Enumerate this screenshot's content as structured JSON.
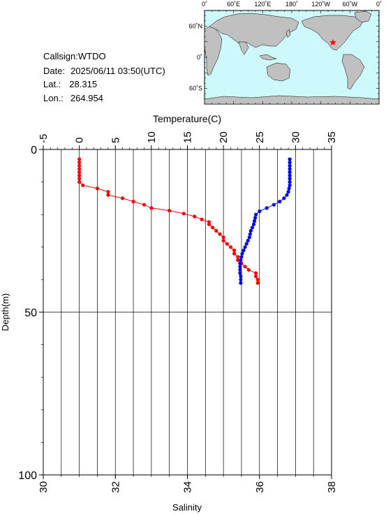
{
  "info": {
    "callsign_label": "Callsign:",
    "callsign": "WTDO",
    "date_label": "Date:",
    "date": "2025/06/11 03:50(UTC)",
    "lat_label": "Lat.:",
    "lat": "28.315",
    "lon_label": "Lon.:",
    "lon": "264.954"
  },
  "map": {
    "top_labels": [
      "0˚",
      "60˚E",
      "120˚E",
      "180˚",
      "120˚W",
      "60˚W",
      "0˚"
    ],
    "left_labels": [
      "60˚N",
      "0˚",
      "60˚S"
    ],
    "ocean_color": "#cdf9fd",
    "land_color": "#c0c0c0",
    "marker_color": "#ff0000",
    "marker": {
      "lat": 28.315,
      "lon": 264.954
    }
  },
  "chart_data": {
    "type": "line",
    "top_axis": {
      "label": "Temperature(C)",
      "range": [
        -5,
        35
      ],
      "ticks": [
        "-5",
        "0",
        "5",
        "10",
        "15",
        "20",
        "25",
        "30",
        "35"
      ]
    },
    "bottom_axis": {
      "label": "Salinity",
      "range": [
        30,
        38
      ],
      "ticks": [
        "30",
        "32",
        "34",
        "36",
        "38"
      ]
    },
    "y_axis": {
      "label": "Depth(m)",
      "range": [
        0,
        100
      ],
      "inverted": true,
      "ticks": [
        "0",
        "50",
        "100"
      ]
    },
    "grid": true,
    "series": [
      {
        "color": "#ff0000",
        "axis": "bottom",
        "points": [
          [
            31.0,
            3
          ],
          [
            31.0,
            4
          ],
          [
            31.0,
            5
          ],
          [
            31.0,
            6
          ],
          [
            31.0,
            7
          ],
          [
            31.0,
            8
          ],
          [
            31.0,
            9
          ],
          [
            31.0,
            10
          ],
          [
            31.1,
            11
          ],
          [
            31.5,
            12
          ],
          [
            31.8,
            13
          ],
          [
            31.8,
            14
          ],
          [
            32.2,
            15
          ],
          [
            32.5,
            16
          ],
          [
            32.8,
            17
          ],
          [
            33.0,
            18
          ],
          [
            33.5,
            18.8
          ],
          [
            33.9,
            19.7
          ],
          [
            34.2,
            20.6
          ],
          [
            34.4,
            21.5
          ],
          [
            34.6,
            22.3
          ],
          [
            34.6,
            23
          ],
          [
            34.7,
            24
          ],
          [
            34.8,
            25
          ],
          [
            34.9,
            26
          ],
          [
            35.0,
            27
          ],
          [
            35.0,
            28
          ],
          [
            35.1,
            29
          ],
          [
            35.2,
            30
          ],
          [
            35.3,
            31
          ],
          [
            35.3,
            32
          ],
          [
            35.4,
            33
          ],
          [
            35.4,
            34
          ],
          [
            35.5,
            35
          ],
          [
            35.6,
            36
          ],
          [
            35.7,
            37
          ],
          [
            35.9,
            38
          ],
          [
            35.9,
            39
          ],
          [
            35.95,
            40
          ],
          [
            35.95,
            41
          ]
        ]
      },
      {
        "color": "#0000ff",
        "axis": "top",
        "points": [
          [
            29.2,
            3
          ],
          [
            29.2,
            4
          ],
          [
            29.2,
            5
          ],
          [
            29.2,
            6
          ],
          [
            29.2,
            7
          ],
          [
            29.2,
            8
          ],
          [
            29.2,
            9
          ],
          [
            29.2,
            10
          ],
          [
            29.2,
            11
          ],
          [
            29.1,
            12
          ],
          [
            29.0,
            13
          ],
          [
            28.8,
            14
          ],
          [
            28.4,
            15
          ],
          [
            27.8,
            16
          ],
          [
            27.0,
            17
          ],
          [
            26.0,
            18
          ],
          [
            25.0,
            19
          ],
          [
            24.5,
            20
          ],
          [
            24.4,
            21
          ],
          [
            24.3,
            22
          ],
          [
            24.2,
            23
          ],
          [
            24.0,
            24
          ],
          [
            23.8,
            25
          ],
          [
            23.7,
            26
          ],
          [
            23.6,
            27
          ],
          [
            23.4,
            28
          ],
          [
            23.2,
            29
          ],
          [
            23.0,
            30
          ],
          [
            22.8,
            31
          ],
          [
            22.6,
            32
          ],
          [
            22.5,
            33
          ],
          [
            22.4,
            34
          ],
          [
            22.3,
            35
          ],
          [
            22.3,
            36
          ],
          [
            22.3,
            37
          ],
          [
            22.3,
            38
          ],
          [
            22.4,
            39
          ],
          [
            22.4,
            40
          ],
          [
            22.4,
            41
          ]
        ]
      }
    ]
  }
}
